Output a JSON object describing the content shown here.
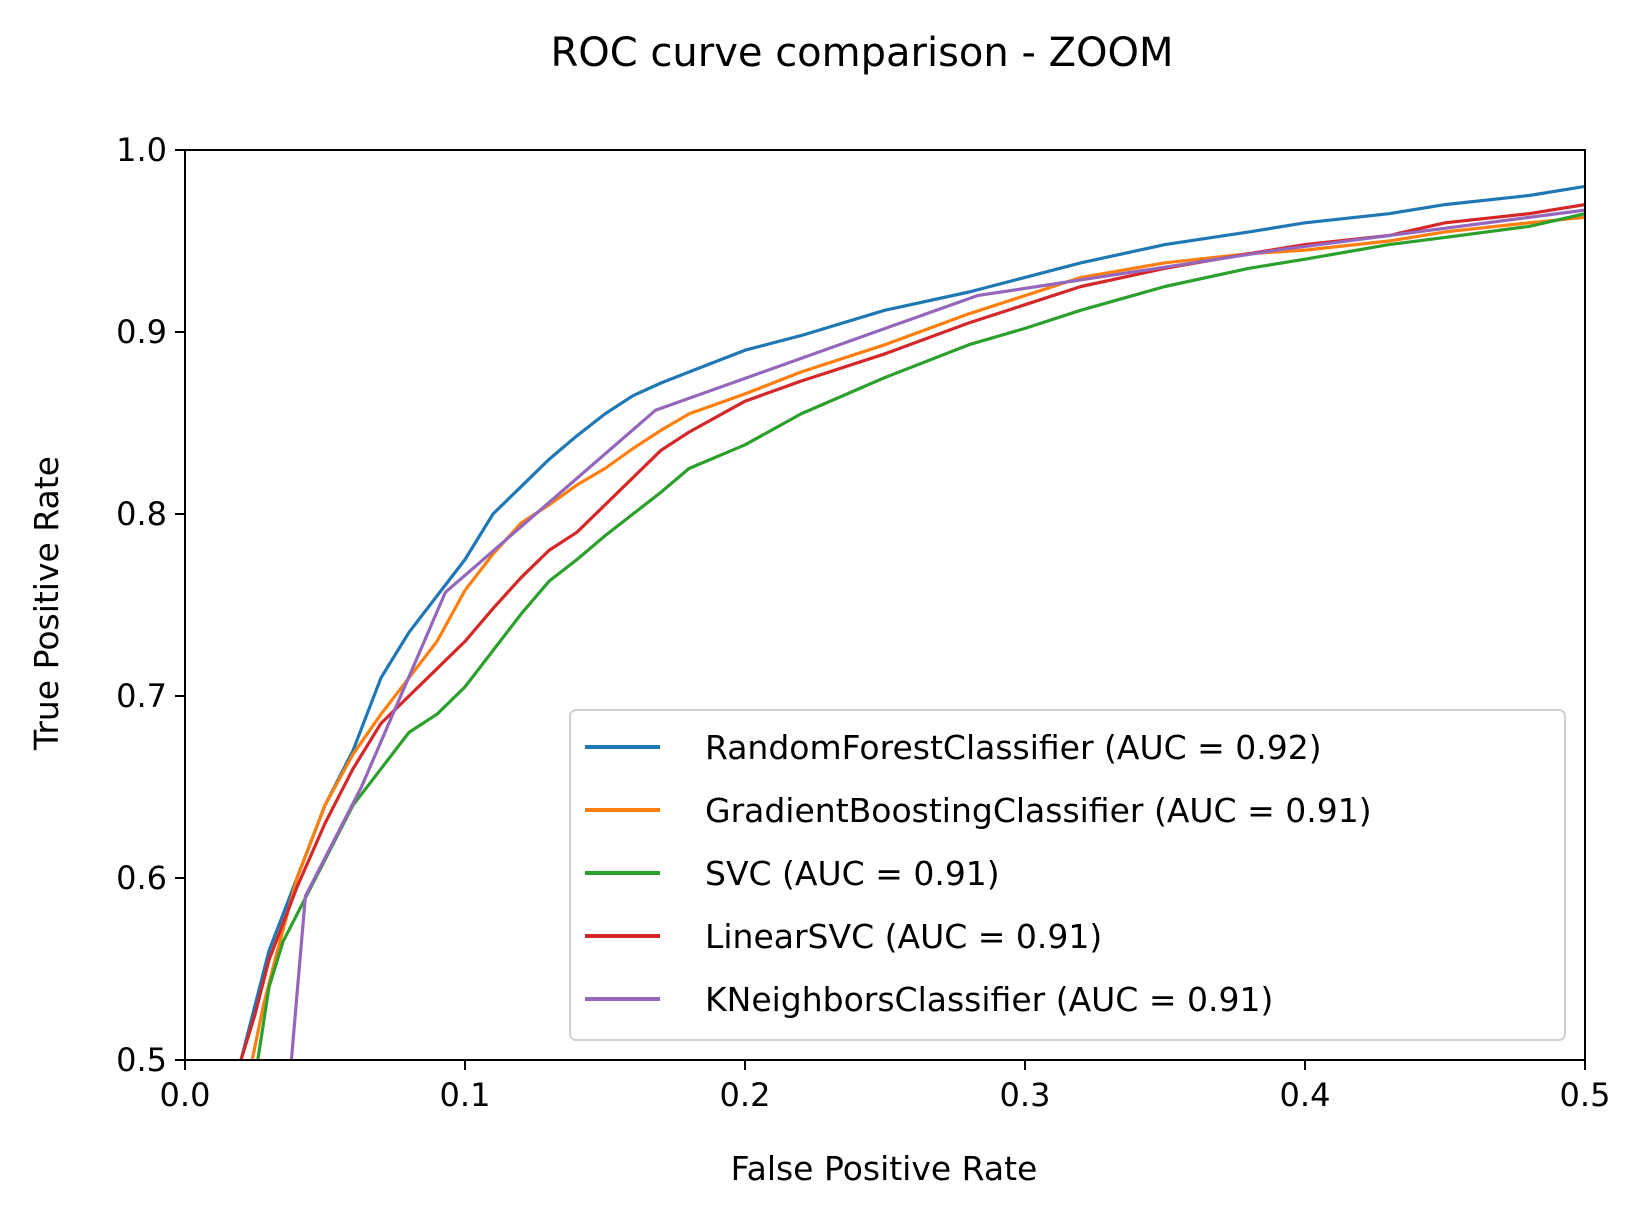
{
  "chart_data": {
    "type": "line",
    "title": "ROC curve comparison - ZOOM",
    "xlabel": "False Positive Rate",
    "ylabel": "True Positive Rate",
    "xlim": [
      0.0,
      0.5
    ],
    "ylim": [
      0.5,
      1.0
    ],
    "xticks": [
      "0.0",
      "0.1",
      "0.2",
      "0.3",
      "0.4",
      "0.5"
    ],
    "yticks": [
      "0.5",
      "0.6",
      "0.7",
      "0.8",
      "0.9",
      "1.0"
    ],
    "grid": false,
    "legend_position": "lower right",
    "series": [
      {
        "name": "RandomForestClassifier (AUC = 0.92)",
        "color": "#1f77b4",
        "x": [
          0.02,
          0.025,
          0.03,
          0.035,
          0.04,
          0.05,
          0.06,
          0.07,
          0.08,
          0.09,
          0.1,
          0.11,
          0.12,
          0.13,
          0.14,
          0.15,
          0.16,
          0.17,
          0.18,
          0.2,
          0.22,
          0.25,
          0.28,
          0.3,
          0.32,
          0.35,
          0.38,
          0.4,
          0.43,
          0.45,
          0.48,
          0.5
        ],
        "y": [
          0.5,
          0.53,
          0.56,
          0.58,
          0.6,
          0.64,
          0.67,
          0.71,
          0.735,
          0.755,
          0.775,
          0.8,
          0.815,
          0.83,
          0.843,
          0.855,
          0.865,
          0.872,
          0.878,
          0.89,
          0.898,
          0.912,
          0.922,
          0.93,
          0.938,
          0.948,
          0.955,
          0.96,
          0.965,
          0.97,
          0.975,
          0.98
        ]
      },
      {
        "name": "GradientBoostingClassifier (AUC = 0.91)",
        "color": "#ff7f0e",
        "x": [
          0.024,
          0.028,
          0.033,
          0.04,
          0.05,
          0.06,
          0.07,
          0.08,
          0.09,
          0.1,
          0.11,
          0.12,
          0.13,
          0.14,
          0.15,
          0.16,
          0.17,
          0.18,
          0.2,
          0.22,
          0.25,
          0.28,
          0.3,
          0.32,
          0.35,
          0.38,
          0.4,
          0.43,
          0.45,
          0.48,
          0.5
        ],
        "y": [
          0.5,
          0.53,
          0.56,
          0.6,
          0.64,
          0.668,
          0.69,
          0.71,
          0.73,
          0.758,
          0.778,
          0.795,
          0.805,
          0.816,
          0.825,
          0.836,
          0.846,
          0.855,
          0.866,
          0.878,
          0.893,
          0.91,
          0.92,
          0.93,
          0.938,
          0.943,
          0.945,
          0.95,
          0.955,
          0.96,
          0.963
        ]
      },
      {
        "name": "SVC (AUC = 0.91)",
        "color": "#2ca02c",
        "x": [
          0.026,
          0.03,
          0.035,
          0.04,
          0.05,
          0.06,
          0.07,
          0.08,
          0.09,
          0.1,
          0.11,
          0.12,
          0.13,
          0.14,
          0.15,
          0.16,
          0.17,
          0.18,
          0.2,
          0.22,
          0.25,
          0.28,
          0.3,
          0.32,
          0.35,
          0.38,
          0.4,
          0.43,
          0.45,
          0.48,
          0.5
        ],
        "y": [
          0.5,
          0.54,
          0.565,
          0.58,
          0.61,
          0.64,
          0.66,
          0.68,
          0.69,
          0.705,
          0.725,
          0.745,
          0.763,
          0.775,
          0.788,
          0.8,
          0.812,
          0.825,
          0.838,
          0.855,
          0.875,
          0.893,
          0.902,
          0.912,
          0.925,
          0.935,
          0.94,
          0.948,
          0.952,
          0.958,
          0.965
        ]
      },
      {
        "name": "LinearSVC (AUC = 0.91)",
        "color": "#d62728",
        "x": [
          0.02,
          0.025,
          0.03,
          0.035,
          0.04,
          0.05,
          0.06,
          0.07,
          0.08,
          0.09,
          0.1,
          0.11,
          0.12,
          0.13,
          0.14,
          0.15,
          0.16,
          0.17,
          0.18,
          0.2,
          0.22,
          0.25,
          0.28,
          0.3,
          0.32,
          0.35,
          0.38,
          0.4,
          0.43,
          0.45,
          0.48,
          0.5
        ],
        "y": [
          0.5,
          0.525,
          0.555,
          0.575,
          0.595,
          0.63,
          0.66,
          0.685,
          0.7,
          0.715,
          0.73,
          0.748,
          0.765,
          0.78,
          0.79,
          0.805,
          0.82,
          0.835,
          0.845,
          0.862,
          0.873,
          0.888,
          0.905,
          0.915,
          0.925,
          0.935,
          0.943,
          0.948,
          0.953,
          0.96,
          0.965,
          0.97
        ]
      },
      {
        "name": "KNeighborsClassifier (AUC = 0.91)",
        "color": "#9467bd",
        "x": [
          0.038,
          0.043,
          0.063,
          0.093,
          0.168,
          0.283,
          0.39,
          0.5
        ],
        "y": [
          0.5,
          0.59,
          0.65,
          0.757,
          0.857,
          0.92,
          0.945,
          0.967
        ]
      }
    ]
  }
}
